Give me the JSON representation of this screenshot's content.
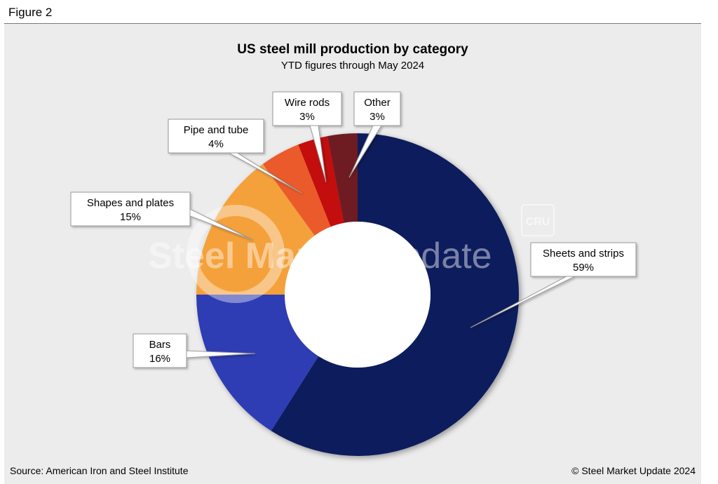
{
  "figure_label": "Figure 2",
  "watermark": {
    "brand": "Steel Market Update",
    "brand_bold": "Steel Market",
    "brand_light": "Update",
    "badge": "CRU"
  },
  "footer": {
    "source": "Source: American Iron and Steel Institute",
    "copyright": "© Steel Market Update 2024"
  },
  "chart_data": {
    "type": "pie",
    "variant": "donut",
    "title": "US steel mill production by category",
    "subtitle": "YTD figures through May 2024",
    "slices": [
      {
        "label": "Sheets and strips",
        "value": 59,
        "value_label": "59%",
        "color": "#0d1f5c"
      },
      {
        "label": "Bars",
        "value": 16,
        "value_label": "16%",
        "color": "#2e3db3"
      },
      {
        "label": "Shapes and plates",
        "value": 15,
        "value_label": "15%",
        "color": "#f5a13b"
      },
      {
        "label": "Pipe and tube",
        "value": 4,
        "value_label": "4%",
        "color": "#eb5a2a"
      },
      {
        "label": "Wire rods",
        "value": 3,
        "value_label": "3%",
        "color": "#c40d0d"
      },
      {
        "label": "Other",
        "value": 3,
        "value_label": "3%",
        "color": "#6e1f24"
      }
    ],
    "legend": "none",
    "start_angle": "12 o'clock",
    "direction": "clockwise"
  }
}
